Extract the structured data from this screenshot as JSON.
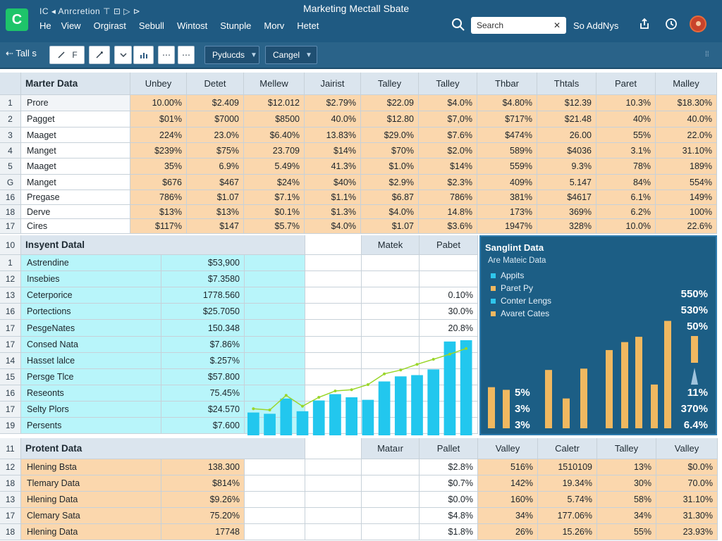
{
  "app": {
    "quick_access": "IC ◂ Anrcretion  ⊤ ⊡ ▷ ⊳",
    "doc_title": "Marketing Mectall Sbate",
    "menu": [
      "He",
      "View",
      "Orgirast",
      "Sebull",
      "Wintost",
      "Stunple",
      "Morv",
      "Hetet"
    ],
    "search_placeholder": "Search",
    "addins": "So AddNys"
  },
  "toolbar": {
    "back": "⇠ Tall s",
    "pen_label": "F",
    "dropdown1": "Pyducds",
    "dropdown2": "Cangel"
  },
  "section1": {
    "rownum": "",
    "title": "Marter Data",
    "headers": [
      "Unbey",
      "Detet",
      "Mellew",
      "Jairist",
      "Talley",
      "Talley",
      "Thbar",
      "Thtals",
      "Paret",
      "Malley"
    ],
    "rows": [
      {
        "n": "1",
        "label": "Prore",
        "values": [
          "10.00%",
          "$2.409",
          "$12.012",
          "$2.79%",
          "$22.09",
          "$4.0%",
          "$4.80%",
          "$12.39",
          "10.3%",
          "$18.30%"
        ]
      },
      {
        "n": "2",
        "label": "Pagget",
        "values": [
          "$01%",
          "$7000",
          "$8500",
          "40.0%",
          "$12.80",
          "$7,0%",
          "$717%",
          "$21.48",
          "40%",
          "40.0%"
        ]
      },
      {
        "n": "3",
        "label": "Maaget",
        "values": [
          "224%",
          "23.0%",
          "$6.40%",
          "13.83%",
          "$29.0%",
          "$7.6%",
          "$474%",
          "26.00",
          "55%",
          "22.0%"
        ]
      },
      {
        "n": "4",
        "label": "Manget",
        "values": [
          "$239%",
          "$75%",
          "23.709",
          "$14%",
          "$70%",
          "$2.0%",
          "589%",
          "$4036",
          "3.1%",
          "31.10%"
        ]
      },
      {
        "n": "5",
        "label": "Maaget",
        "values": [
          "35%",
          "6.9%",
          "5.49%",
          "41.3%",
          "$1.0%",
          "$14%",
          "559%",
          "9.3%",
          "78%",
          "189%"
        ]
      },
      {
        "n": "G",
        "label": "Manget",
        "values": [
          "$676",
          "$467",
          "$24%",
          "$40%",
          "$2.9%",
          "$2.3%",
          "409%",
          "5.147",
          "84%",
          "554%"
        ]
      },
      {
        "n": "16",
        "label": "Pregase",
        "values": [
          "786%",
          "$1.07",
          "$7.1%",
          "$1.1%",
          "$6.87",
          "786%",
          "381%",
          "$4617",
          "6.1%",
          "149%"
        ]
      },
      {
        "n": "18",
        "label": "Derve",
        "values": [
          "$13%",
          "$13%",
          "$0.1%",
          "$1.3%",
          "$4.0%",
          "14.8%",
          "173%",
          "369%",
          "6.2%",
          "100%"
        ]
      },
      {
        "n": "17",
        "label": "Cires",
        "values": [
          "$117%",
          "$147",
          "$5.7%",
          "$4.0%",
          "$1.07",
          "$3.6%",
          "1947%",
          "328%",
          "10.0%",
          "22.6%"
        ]
      }
    ]
  },
  "section2": {
    "rownum": "10",
    "title": "Insyent Datal",
    "headers": [
      "Matek",
      "Pabet"
    ],
    "rows": [
      {
        "n": "1",
        "label": "Astrendine",
        "value": "$53,900",
        "extra": ""
      },
      {
        "n": "12",
        "label": "Insebies",
        "value": "$7.3580",
        "extra": ""
      },
      {
        "n": "13",
        "label": "Ceterporice",
        "value": "1778.560",
        "extra": "0.10%"
      },
      {
        "n": "16",
        "label": "Portections",
        "value": "$25.7050",
        "extra": "30.0%"
      },
      {
        "n": "17",
        "label": "PesgeNates",
        "value": "150.348",
        "extra": "20.8%"
      },
      {
        "n": "17",
        "label": "Consed Nata",
        "value": "$7.86%",
        "extra": ""
      },
      {
        "n": "14",
        "label": "Hasset lalce",
        "value": "$.257%",
        "extra": ""
      },
      {
        "n": "15",
        "label": "Persge Tlce",
        "value": "$57.800",
        "extra": ""
      },
      {
        "n": "16",
        "label": "Reseonts",
        "value": "75.45%",
        "extra": ""
      },
      {
        "n": "17",
        "label": "Selty Plors",
        "value": "$24.570",
        "extra": ""
      },
      {
        "n": "19",
        "label": "Persents",
        "value": "$7.600",
        "extra": ""
      }
    ]
  },
  "chart_data": [
    {
      "type": "bar",
      "values": [
        36,
        34,
        58,
        38,
        55,
        65,
        60,
        56,
        85,
        93,
        95,
        104,
        148,
        150
      ],
      "line_values": [
        42,
        40,
        63,
        46,
        60,
        70,
        72,
        80,
        97,
        103,
        112,
        120,
        128,
        137
      ],
      "ylim": [
        0,
        160
      ],
      "bar_color": "#22c7ee",
      "line_color": "#9ad62a"
    },
    {
      "type": "bar",
      "title": "Sanglint Data",
      "subtitle": "Are Mateic Data",
      "legend": [
        {
          "name": "Appits",
          "color": "#2fc6ec"
        },
        {
          "name": "Paret Py",
          "color": "#f0b860"
        },
        {
          "name": "Conter Lengs",
          "color": "#2fc6ec"
        },
        {
          "name": "Avaret Cates",
          "color": "#f0b860"
        }
      ],
      "values": [
        62,
        58,
        88,
        45,
        90,
        118,
        130,
        138,
        66,
        162
      ],
      "ylim": [
        0,
        170
      ],
      "bar_color": "#f0b860",
      "labels_left": [
        "5%",
        "3%",
        "3%"
      ],
      "labels_right_top": [
        "550%",
        "530%",
        "50%"
      ],
      "labels_right_bottom": [
        "11%",
        "370%",
        "6.4%"
      ]
    }
  ],
  "section3": {
    "rownum": "11",
    "title": "Protent Data",
    "headers": [
      "Mataır",
      "Pallet",
      "Valley",
      "Caletr",
      "Talley",
      "Valley"
    ],
    "rows": [
      {
        "n": "12",
        "label": "Hlening Bsta",
        "value": "138.300",
        "values": [
          "$2.8%",
          "516%",
          "1510109",
          "13%",
          "$0.0%"
        ]
      },
      {
        "n": "18",
        "label": "Tlemary Data",
        "value": "$814%",
        "values": [
          "$0.7%",
          "142%",
          "19.34%",
          "30%",
          "70.0%"
        ]
      },
      {
        "n": "13",
        "label": "Hlening Data",
        "value": "$9.26%",
        "values": [
          "$0.0%",
          "160%",
          "5.74%",
          "58%",
          "31.10%"
        ]
      },
      {
        "n": "17",
        "label": "Clemary Sata",
        "value": "75.20%",
        "values": [
          "$4.8%",
          "34%",
          "177.06%",
          "34%",
          "31.30%"
        ]
      },
      {
        "n": "18",
        "label": "Hlening Data",
        "value": "17748",
        "values": [
          "$1.8%",
          "26%",
          "15.26%",
          "55%",
          "23.93%"
        ]
      }
    ]
  }
}
